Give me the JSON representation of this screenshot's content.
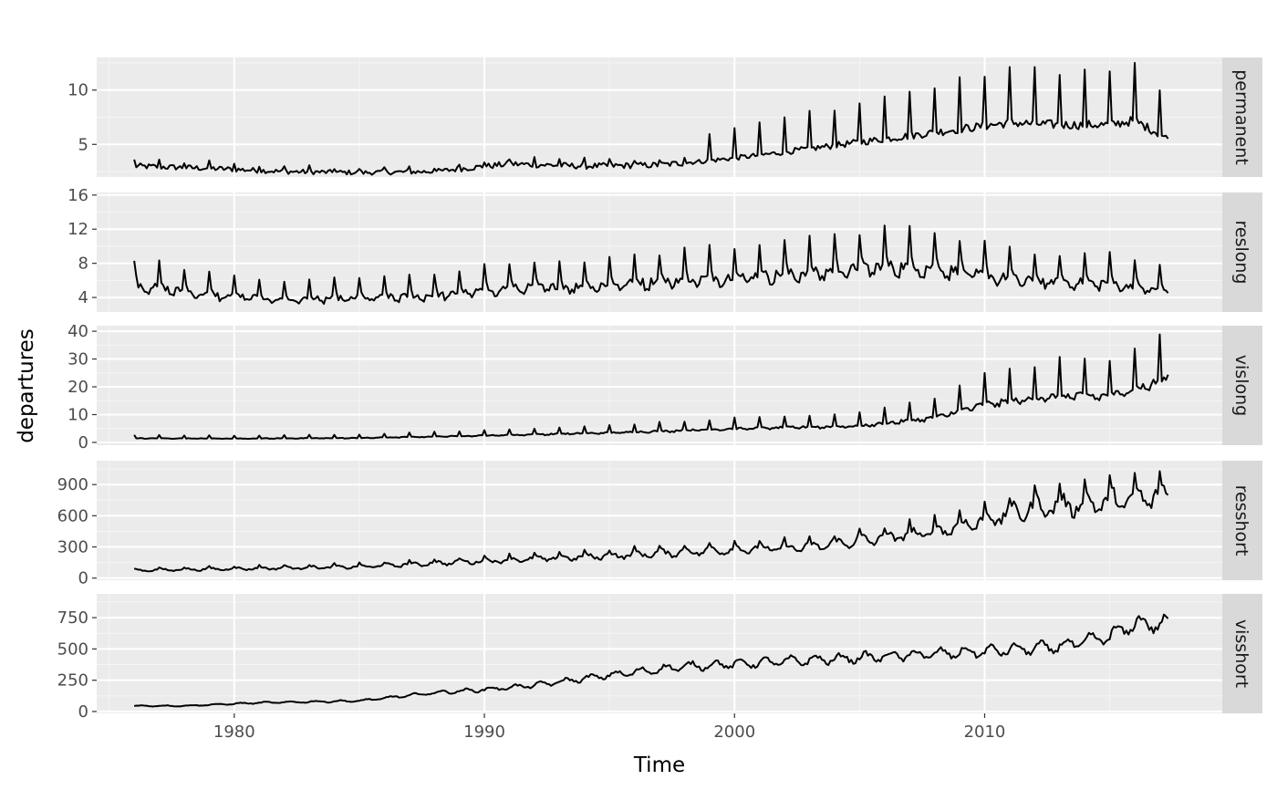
{
  "chart_data": {
    "type": "line",
    "xlabel": "Time",
    "ylabel": "departures",
    "xlim": [
      1974.5,
      2019.5
    ],
    "x_ticks": [
      1980,
      1990,
      2000,
      2010
    ],
    "x_tick_labels": [
      "1980",
      "1990",
      "2000",
      "2010"
    ],
    "grid": true,
    "x_start": 1976.0,
    "x_end": 2017.33,
    "series": [
      {
        "name": "permanent",
        "ylim": [
          2.0,
          13.0
        ],
        "y_ticks": [
          5,
          10
        ],
        "y_tick_labels": [
          "5",
          "10"
        ],
        "x": [
          1976,
          1979,
          1982,
          1985,
          1988,
          1991,
          1994,
          1997,
          1999,
          2001,
          2003,
          2005,
          2007,
          2009,
          2011,
          2013,
          2015,
          2016,
          2017.33
        ],
        "values": [
          3.0,
          2.8,
          2.5,
          2.4,
          2.5,
          3.2,
          3.0,
          3.1,
          3.5,
          4.0,
          4.6,
          5.2,
          5.8,
          6.4,
          7.0,
          6.8,
          6.8,
          7.2,
          5.5
        ]
      },
      {
        "name": "reslong",
        "ylim": [
          2.3,
          16.3
        ],
        "y_ticks": [
          4,
          8,
          12,
          16
        ],
        "y_tick_labels": [
          "4",
          "8",
          "12",
          "16"
        ],
        "x": [
          1976,
          1979,
          1982,
          1985,
          1988,
          1991,
          1994,
          1997,
          2000,
          2003,
          2006,
          2008,
          2010,
          2012,
          2015,
          2017.33
        ],
        "values": [
          5.6,
          4.4,
          3.8,
          4.0,
          4.3,
          5.2,
          5.4,
          6.0,
          6.5,
          7.0,
          7.8,
          7.6,
          6.7,
          6.0,
          5.8,
          4.8
        ]
      },
      {
        "name": "vislong",
        "ylim": [
          -1.0,
          42.0
        ],
        "y_ticks": [
          0,
          10,
          20,
          30,
          40
        ],
        "y_tick_labels": [
          "0",
          "10",
          "20",
          "30",
          "40"
        ],
        "x": [
          1976,
          1980,
          1985,
          1990,
          1995,
          2000,
          2005,
          2008,
          2010,
          2013,
          2015,
          2017.33
        ],
        "values": [
          1.5,
          1.4,
          1.6,
          2.5,
          3.5,
          5.0,
          6.0,
          9.0,
          14.0,
          17.0,
          17.0,
          23.0
        ]
      },
      {
        "name": "resshort",
        "ylim": [
          -20,
          1130
        ],
        "y_ticks": [
          0,
          300,
          600,
          900
        ],
        "y_tick_labels": [
          "0",
          "300",
          "600",
          "900"
        ],
        "x": [
          1976,
          1980,
          1985,
          1990,
          1995,
          2000,
          2003,
          2005,
          2008,
          2010,
          2012,
          2015,
          2017.33
        ],
        "values": [
          75,
          90,
          110,
          165,
          215,
          275,
          300,
          360,
          450,
          560,
          680,
          740,
          800
        ]
      },
      {
        "name": "visshort",
        "ylim": [
          -15,
          940
        ],
        "y_ticks": [
          0,
          250,
          500,
          750
        ],
        "y_tick_labels": [
          "0",
          "250",
          "500",
          "750"
        ],
        "x": [
          1976,
          1978,
          1981,
          1985,
          1988,
          1990,
          1992,
          1995,
          1998,
          2000,
          2003,
          2005,
          2008,
          2010,
          2013,
          2015,
          2016,
          2017.33
        ],
        "values": [
          45,
          45,
          70,
          85,
          150,
          175,
          210,
          290,
          360,
          380,
          410,
          430,
          460,
          480,
          520,
          600,
          700,
          700
        ]
      }
    ]
  }
}
